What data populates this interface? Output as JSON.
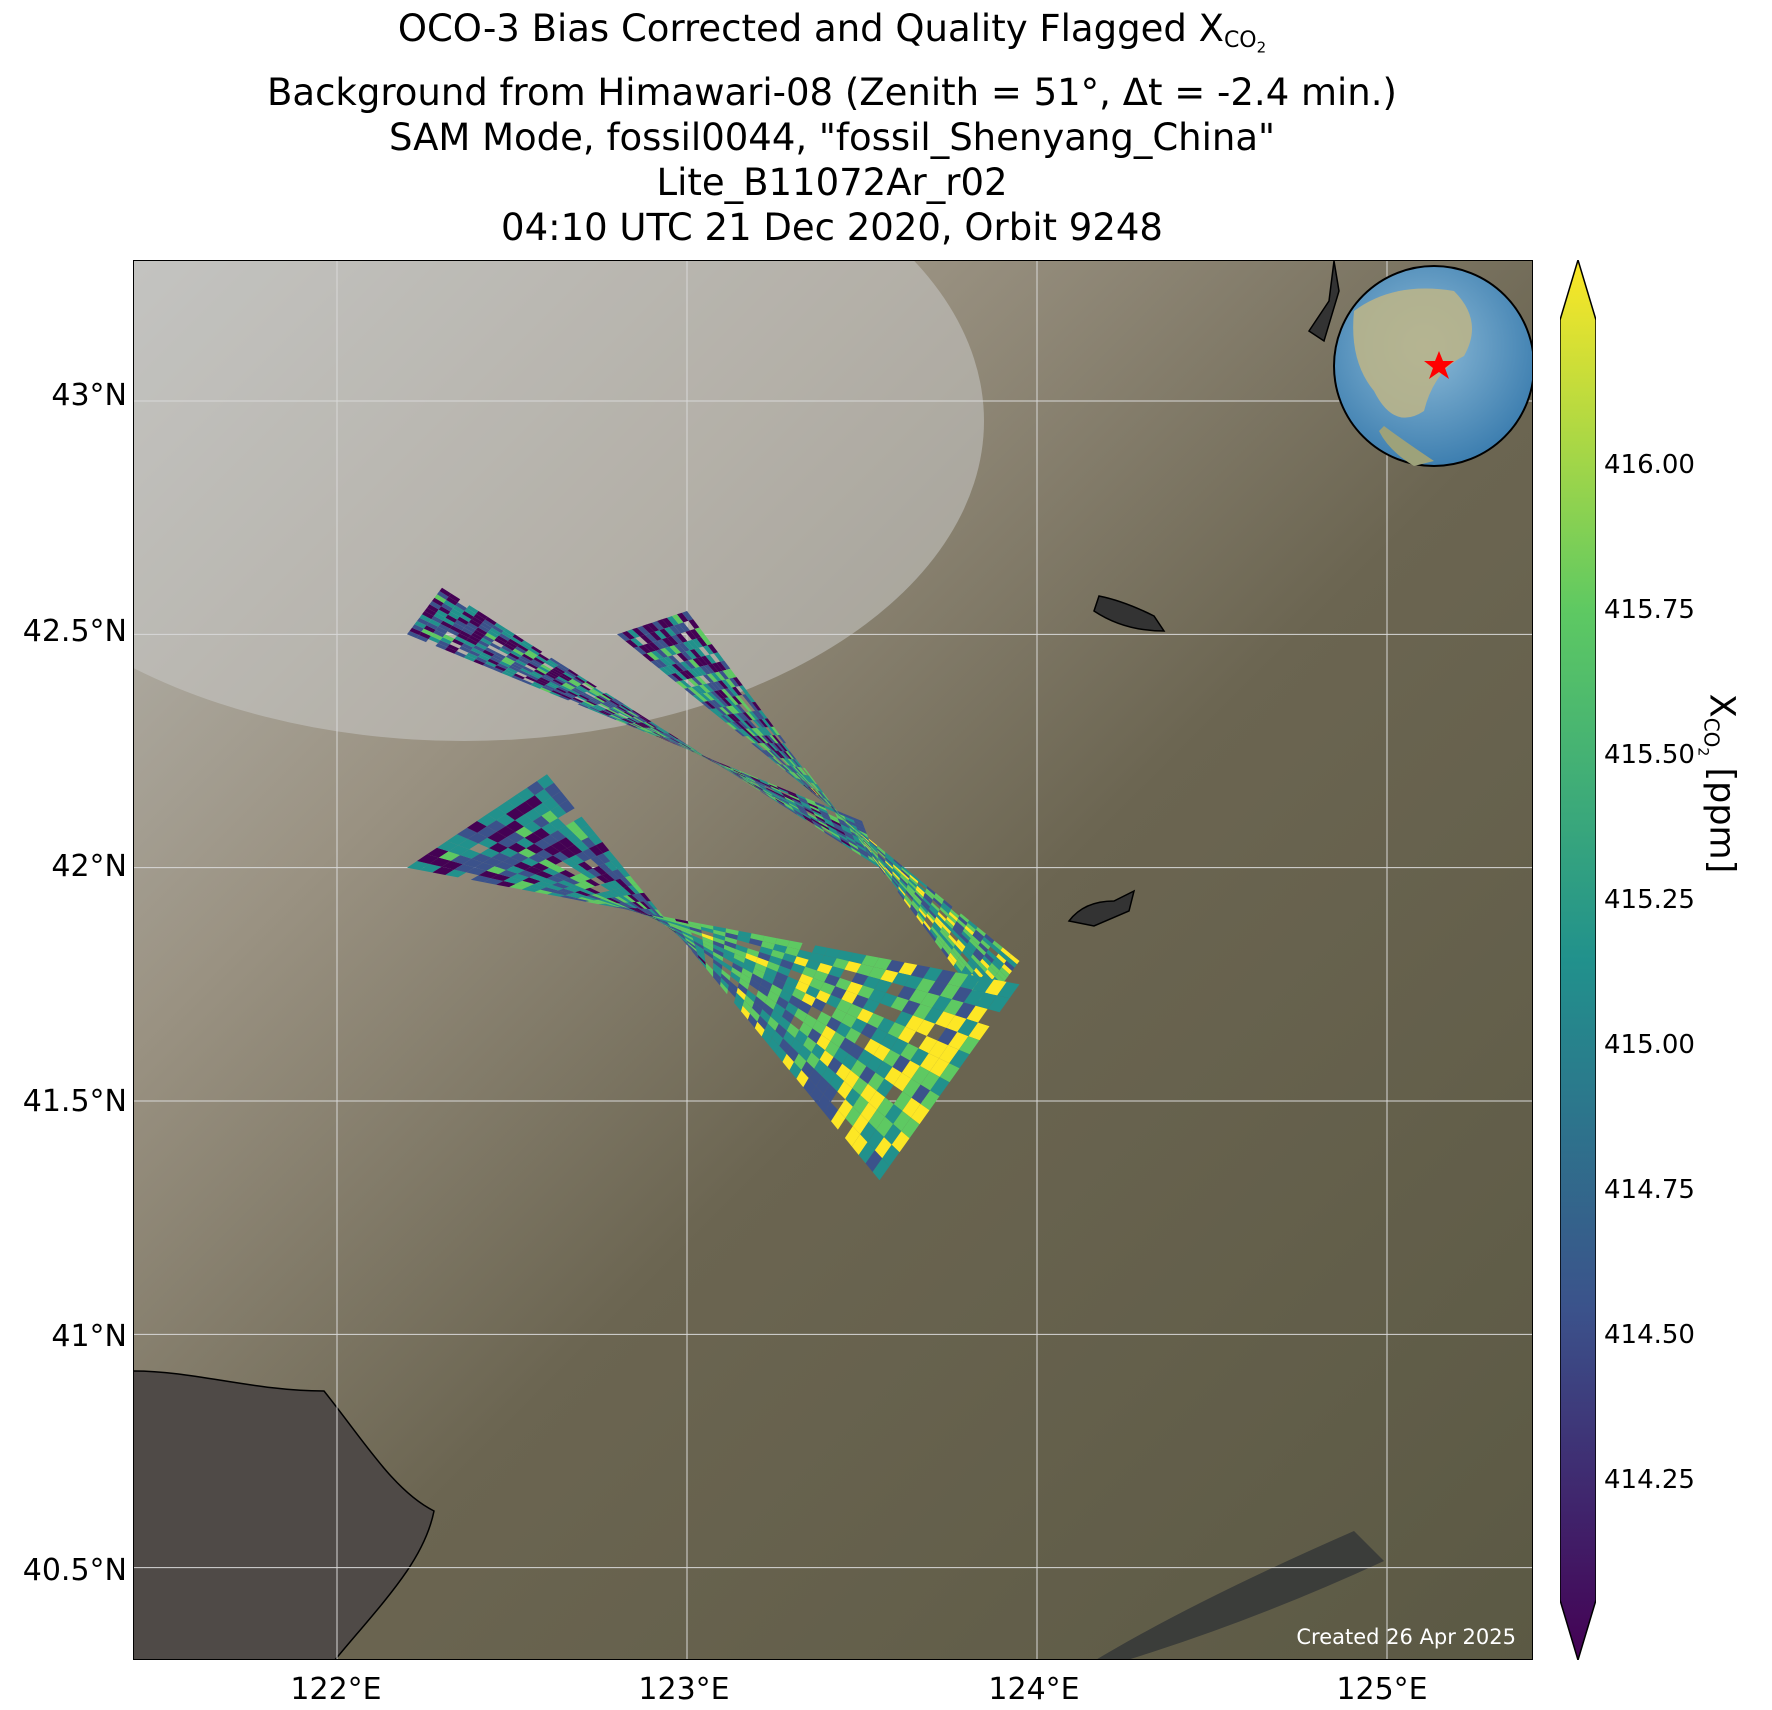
{
  "title": {
    "line1_prefix": "OCO-3 Bias Corrected and Quality Flagged X",
    "line1_sub": "CO",
    "line1_sub2": "2",
    "line2": "Background from Himawari-08 (Zenith = 51°, Δt = -2.4 min.)",
    "line3": "SAM Mode, fossil0044, \"fossil_Shenyang_China\"",
    "line4": "Lite_B11072Ar_r02",
    "line5": "04:10 UTC 21 Dec 2020, Orbit 9248"
  },
  "map": {
    "lat_ticks": [
      "43°N",
      "42.5°N",
      "42°N",
      "41.5°N",
      "41°N",
      "40.5°N"
    ],
    "lon_ticks": [
      "122°E",
      "123°E",
      "124°E",
      "125°E"
    ],
    "credit": "Created 26 Apr 2025",
    "target_marker": "red-star",
    "inset_globe": "globe-icon"
  },
  "colorbar": {
    "label_prefix": "X",
    "label_sub": "CO",
    "label_sub2": "2",
    "label_suffix": " [ppm]",
    "ticks": [
      "416.00",
      "415.75",
      "415.50",
      "415.25",
      "415.00",
      "414.75",
      "414.50",
      "414.25"
    ],
    "colormap": "viridis",
    "colors": [
      "#440154",
      "#3b528b",
      "#21918c",
      "#5ec962",
      "#fde725"
    ]
  },
  "chart_data": {
    "type": "heatmap",
    "projection": "map",
    "x_axis": "longitude",
    "y_axis": "latitude",
    "xlim": [
      121.42,
      125.42
    ],
    "ylim": [
      40.3,
      43.3
    ],
    "value_range": [
      414.0,
      416.25
    ],
    "colorbar_extends": "both",
    "swaths": [
      {
        "corners": [
          [
            122.2,
            42.5
          ],
          [
            122.3,
            42.6
          ],
          [
            123.5,
            42.1
          ],
          [
            123.55,
            42.0
          ]
        ]
      },
      {
        "corners": [
          [
            122.8,
            42.5
          ],
          [
            123.0,
            42.55
          ],
          [
            123.95,
            41.8
          ],
          [
            123.85,
            41.7
          ]
        ]
      },
      {
        "corners": [
          [
            122.2,
            42.0
          ],
          [
            122.6,
            42.2
          ],
          [
            123.95,
            41.75
          ],
          [
            123.55,
            41.33
          ]
        ]
      }
    ]
  }
}
